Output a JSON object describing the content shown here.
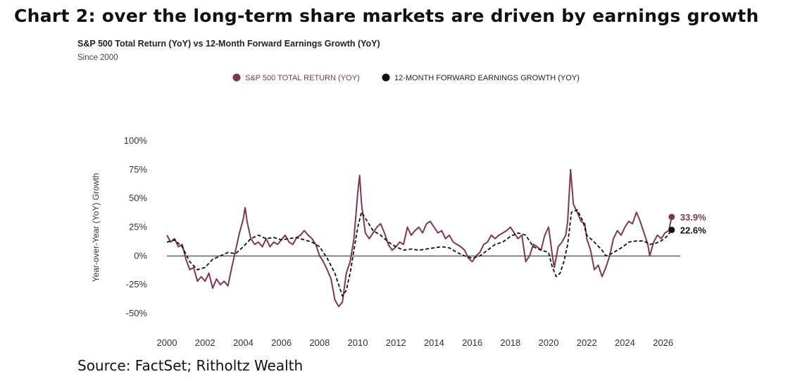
{
  "header": {
    "title": "Chart 2: over the long-term share markets are driven by earnings growth"
  },
  "chart_data": {
    "type": "line",
    "title": "S&P 500 Total Return (YoY) vs 12-Month Forward Earnings Growth (YoY)",
    "subtitle": "Since 2000",
    "xlabel": "",
    "ylabel": "Year-over-Year (YoY) Growth",
    "xlim": [
      2000,
      2026.9
    ],
    "ylim": [
      -50,
      100
    ],
    "x_ticks": [
      "2000",
      "2002",
      "2004",
      "2006",
      "2008",
      "2010",
      "2012",
      "2014",
      "2016",
      "2018",
      "2020",
      "2022",
      "2024",
      "2026"
    ],
    "y_ticks": [
      "100%",
      "75%",
      "50%",
      "25%",
      "0%",
      "-25%",
      "-50%"
    ],
    "y_tick_values": [
      100,
      75,
      50,
      25,
      0,
      -25,
      -50
    ],
    "legend_position": "top",
    "grid": false,
    "series": [
      {
        "name": "S&P 500 TOTAL RETURN (YOY)",
        "color": "#7b3a4a",
        "end_label": "33.9%",
        "end_value": 33.9,
        "points": [
          [
            2000.0,
            18
          ],
          [
            2000.2,
            12
          ],
          [
            2000.4,
            15
          ],
          [
            2000.6,
            8
          ],
          [
            2000.8,
            10
          ],
          [
            2001.0,
            -3
          ],
          [
            2001.2,
            -12
          ],
          [
            2001.4,
            -10
          ],
          [
            2001.6,
            -22
          ],
          [
            2001.8,
            -18
          ],
          [
            2002.0,
            -22
          ],
          [
            2002.2,
            -15
          ],
          [
            2002.4,
            -28
          ],
          [
            2002.6,
            -20
          ],
          [
            2002.8,
            -25
          ],
          [
            2003.0,
            -22
          ],
          [
            2003.2,
            -26
          ],
          [
            2003.4,
            -10
          ],
          [
            2003.6,
            5
          ],
          [
            2003.8,
            20
          ],
          [
            2004.0,
            32
          ],
          [
            2004.1,
            42
          ],
          [
            2004.2,
            30
          ],
          [
            2004.4,
            15
          ],
          [
            2004.6,
            10
          ],
          [
            2004.8,
            12
          ],
          [
            2005.0,
            8
          ],
          [
            2005.2,
            15
          ],
          [
            2005.4,
            8
          ],
          [
            2005.6,
            12
          ],
          [
            2005.8,
            10
          ],
          [
            2006.0,
            14
          ],
          [
            2006.2,
            18
          ],
          [
            2006.4,
            12
          ],
          [
            2006.6,
            10
          ],
          [
            2006.8,
            16
          ],
          [
            2007.0,
            18
          ],
          [
            2007.2,
            22
          ],
          [
            2007.4,
            18
          ],
          [
            2007.6,
            15
          ],
          [
            2007.8,
            10
          ],
          [
            2008.0,
            0
          ],
          [
            2008.2,
            -5
          ],
          [
            2008.4,
            -12
          ],
          [
            2008.6,
            -20
          ],
          [
            2008.8,
            -38
          ],
          [
            2009.0,
            -44
          ],
          [
            2009.2,
            -40
          ],
          [
            2009.4,
            -15
          ],
          [
            2009.6,
            -5
          ],
          [
            2009.8,
            15
          ],
          [
            2010.0,
            55
          ],
          [
            2010.1,
            70
          ],
          [
            2010.2,
            45
          ],
          [
            2010.4,
            20
          ],
          [
            2010.6,
            15
          ],
          [
            2010.8,
            20
          ],
          [
            2011.0,
            25
          ],
          [
            2011.2,
            28
          ],
          [
            2011.4,
            20
          ],
          [
            2011.6,
            10
          ],
          [
            2011.8,
            5
          ],
          [
            2012.0,
            8
          ],
          [
            2012.2,
            12
          ],
          [
            2012.4,
            10
          ],
          [
            2012.6,
            25
          ],
          [
            2012.8,
            18
          ],
          [
            2013.0,
            22
          ],
          [
            2013.2,
            25
          ],
          [
            2013.4,
            20
          ],
          [
            2013.6,
            28
          ],
          [
            2013.8,
            30
          ],
          [
            2014.0,
            25
          ],
          [
            2014.2,
            20
          ],
          [
            2014.4,
            22
          ],
          [
            2014.6,
            15
          ],
          [
            2014.8,
            18
          ],
          [
            2015.0,
            12
          ],
          [
            2015.2,
            10
          ],
          [
            2015.4,
            8
          ],
          [
            2015.6,
            5
          ],
          [
            2015.8,
            -2
          ],
          [
            2016.0,
            -5
          ],
          [
            2016.2,
            0
          ],
          [
            2016.4,
            3
          ],
          [
            2016.6,
            10
          ],
          [
            2016.8,
            12
          ],
          [
            2017.0,
            18
          ],
          [
            2017.2,
            15
          ],
          [
            2017.4,
            18
          ],
          [
            2017.6,
            20
          ],
          [
            2017.8,
            22
          ],
          [
            2018.0,
            25
          ],
          [
            2018.2,
            20
          ],
          [
            2018.4,
            15
          ],
          [
            2018.6,
            18
          ],
          [
            2018.8,
            -5
          ],
          [
            2019.0,
            0
          ],
          [
            2019.2,
            10
          ],
          [
            2019.4,
            8
          ],
          [
            2019.6,
            5
          ],
          [
            2019.8,
            18
          ],
          [
            2020.0,
            25
          ],
          [
            2020.2,
            0
          ],
          [
            2020.3,
            -10
          ],
          [
            2020.5,
            8
          ],
          [
            2020.7,
            12
          ],
          [
            2020.9,
            18
          ],
          [
            2021.0,
            30
          ],
          [
            2021.15,
            75
          ],
          [
            2021.3,
            45
          ],
          [
            2021.5,
            38
          ],
          [
            2021.7,
            30
          ],
          [
            2021.9,
            28
          ],
          [
            2022.0,
            15
          ],
          [
            2022.2,
            5
          ],
          [
            2022.4,
            -12
          ],
          [
            2022.6,
            -8
          ],
          [
            2022.8,
            -18
          ],
          [
            2023.0,
            -10
          ],
          [
            2023.2,
            0
          ],
          [
            2023.4,
            15
          ],
          [
            2023.6,
            22
          ],
          [
            2023.8,
            18
          ],
          [
            2024.0,
            25
          ],
          [
            2024.2,
            30
          ],
          [
            2024.4,
            28
          ],
          [
            2024.6,
            38
          ],
          [
            2024.8,
            30
          ],
          [
            2025.0,
            20
          ],
          [
            2025.2,
            10
          ],
          [
            2025.3,
            0
          ],
          [
            2025.5,
            12
          ],
          [
            2025.7,
            18
          ],
          [
            2025.9,
            15
          ],
          [
            2026.1,
            20
          ],
          [
            2026.3,
            22
          ],
          [
            2026.45,
            33.9
          ]
        ]
      },
      {
        "name": "12-MONTH FORWARD EARNINGS GROWTH (YOY)",
        "color": "#111111",
        "end_label": "22.6%",
        "end_value": 22.6,
        "points": [
          [
            2000.0,
            12
          ],
          [
            2000.4,
            14
          ],
          [
            2000.8,
            8
          ],
          [
            2001.2,
            -5
          ],
          [
            2001.6,
            -12
          ],
          [
            2002.0,
            -10
          ],
          [
            2002.4,
            -3
          ],
          [
            2002.8,
            0
          ],
          [
            2003.2,
            3
          ],
          [
            2003.6,
            2
          ],
          [
            2004.0,
            8
          ],
          [
            2004.4,
            15
          ],
          [
            2004.8,
            18
          ],
          [
            2005.2,
            15
          ],
          [
            2005.6,
            16
          ],
          [
            2006.0,
            14
          ],
          [
            2006.4,
            15
          ],
          [
            2006.8,
            16
          ],
          [
            2007.2,
            14
          ],
          [
            2007.6,
            12
          ],
          [
            2008.0,
            8
          ],
          [
            2008.4,
            -2
          ],
          [
            2008.8,
            -15
          ],
          [
            2009.0,
            -25
          ],
          [
            2009.2,
            -35
          ],
          [
            2009.4,
            -30
          ],
          [
            2009.6,
            -15
          ],
          [
            2009.8,
            5
          ],
          [
            2010.0,
            25
          ],
          [
            2010.2,
            38
          ],
          [
            2010.5,
            30
          ],
          [
            2010.8,
            22
          ],
          [
            2011.2,
            18
          ],
          [
            2011.6,
            12
          ],
          [
            2012.0,
            8
          ],
          [
            2012.4,
            5
          ],
          [
            2012.8,
            6
          ],
          [
            2013.2,
            5
          ],
          [
            2013.6,
            6
          ],
          [
            2014.0,
            7
          ],
          [
            2014.4,
            8
          ],
          [
            2014.8,
            7
          ],
          [
            2015.2,
            3
          ],
          [
            2015.6,
            0
          ],
          [
            2016.0,
            -2
          ],
          [
            2016.4,
            0
          ],
          [
            2016.8,
            5
          ],
          [
            2017.2,
            10
          ],
          [
            2017.6,
            12
          ],
          [
            2018.0,
            17
          ],
          [
            2018.4,
            20
          ],
          [
            2018.8,
            18
          ],
          [
            2019.2,
            8
          ],
          [
            2019.6,
            5
          ],
          [
            2020.0,
            3
          ],
          [
            2020.2,
            -10
          ],
          [
            2020.4,
            -18
          ],
          [
            2020.6,
            -15
          ],
          [
            2020.8,
            -5
          ],
          [
            2021.0,
            10
          ],
          [
            2021.2,
            38
          ],
          [
            2021.5,
            40
          ],
          [
            2021.8,
            30
          ],
          [
            2022.0,
            18
          ],
          [
            2022.4,
            12
          ],
          [
            2022.8,
            5
          ],
          [
            2023.0,
            0
          ],
          [
            2023.3,
            2
          ],
          [
            2023.6,
            5
          ],
          [
            2023.9,
            8
          ],
          [
            2024.2,
            12
          ],
          [
            2024.6,
            13
          ],
          [
            2025.0,
            13
          ],
          [
            2025.3,
            10
          ],
          [
            2025.6,
            11
          ],
          [
            2025.9,
            13
          ],
          [
            2026.2,
            17
          ],
          [
            2026.45,
            22.6
          ]
        ]
      }
    ]
  },
  "footer": {
    "source": "Source: FactSet; Ritholtz Wealth"
  }
}
